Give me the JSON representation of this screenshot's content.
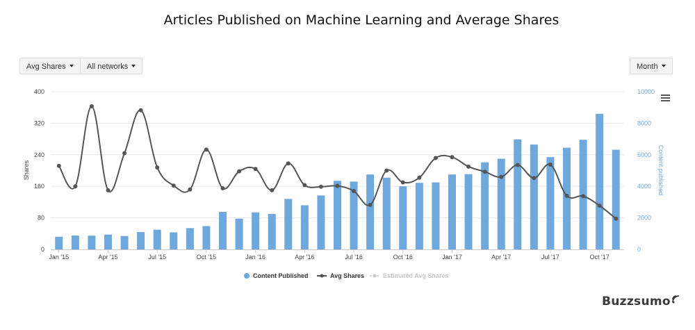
{
  "chart_title": "Articles Published on Machine Learning and Average Shares",
  "controls": {
    "avg_shares_label": "Avg Shares",
    "networks_label": "All networks",
    "period_label": "Month"
  },
  "brand": "Buzzsumo",
  "colors": {
    "bars": "#6fa8dc",
    "line": "#555555",
    "estimated": "#c8c8c8",
    "grid": "#e8e8e8"
  },
  "chart_data": {
    "type": "bar",
    "title": "Articles Published on Machine Learning and Average Shares",
    "x_tick_labels": [
      "Jan '15",
      "Apr '15",
      "Jul '15",
      "Oct '15",
      "Jan '16",
      "Apr '16",
      "Jul '16",
      "Oct '16",
      "Jan '17",
      "Apr '17",
      "Jul '17",
      "Oct '17"
    ],
    "months": 35,
    "y_left": {
      "label": "Shares",
      "min": 0,
      "max": 400,
      "ticks": [
        0,
        80,
        160,
        240,
        320,
        400
      ]
    },
    "y_right": {
      "label": "Content published",
      "min": 0,
      "max": 10000,
      "ticks": [
        0,
        2000,
        4000,
        6000,
        8000,
        10000
      ]
    },
    "series": [
      {
        "name": "Content Published",
        "type": "bar",
        "axis": "right",
        "values": [
          800,
          880,
          870,
          940,
          850,
          1100,
          1250,
          1080,
          1350,
          1480,
          2380,
          1950,
          2350,
          2250,
          3200,
          2800,
          3420,
          4350,
          4300,
          4750,
          4550,
          4000,
          4220,
          4250,
          4750,
          4770,
          5520,
          5750,
          6980,
          6650,
          5850,
          6450,
          6950,
          8600,
          6320
        ]
      },
      {
        "name": "Avg Shares",
        "type": "line",
        "axis": "left",
        "values": [
          212,
          160,
          363,
          150,
          244,
          353,
          208,
          162,
          152,
          253,
          155,
          198,
          204,
          150,
          218,
          163,
          159,
          161,
          148,
          113,
          200,
          170,
          182,
          232,
          234,
          210,
          197,
          184,
          214,
          181,
          215,
          136,
          135,
          111,
          78
        ]
      },
      {
        "name": "Estimated Avg Shares",
        "type": "line",
        "axis": "left",
        "values": []
      }
    ],
    "legend": "bottom-center",
    "grid": true
  }
}
